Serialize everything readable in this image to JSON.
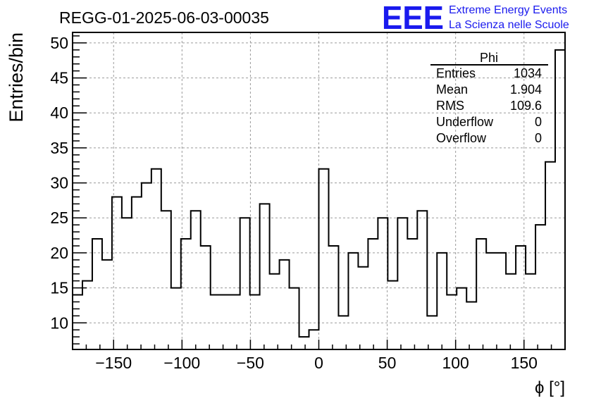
{
  "chart_data": {
    "type": "histogram",
    "title": "REGG-01-2025-06-03-00035",
    "xlabel": "ϕ [°]",
    "ylabel": "Entries/bin",
    "xlim": [
      -180,
      180
    ],
    "ylim": [
      6.2,
      51.5
    ],
    "bin_width": 7.2,
    "bin_edges_start": -180,
    "values": [
      14,
      16,
      22,
      19,
      28,
      25,
      28,
      30,
      32,
      26,
      15,
      22,
      26,
      21,
      14,
      14,
      14,
      25,
      14,
      27,
      17,
      19,
      15,
      8,
      9,
      32,
      21,
      11,
      20,
      18,
      22,
      25,
      16,
      25,
      22,
      26,
      11,
      20,
      14,
      15,
      13,
      22,
      20,
      20,
      17,
      21,
      17,
      24,
      33,
      49
    ],
    "x_ticks": [
      -150,
      -100,
      -50,
      0,
      50,
      100,
      150
    ],
    "x_tick_labels": [
      "−150",
      "−100",
      "−50",
      "0",
      "50",
      "100",
      "150"
    ],
    "y_ticks": [
      10,
      15,
      20,
      25,
      30,
      35,
      40,
      45,
      50
    ],
    "y_tick_labels": [
      "10",
      "15",
      "20",
      "25",
      "30",
      "35",
      "40",
      "45",
      "50"
    ],
    "grid": true,
    "stats_box": {
      "title": "Phi",
      "rows": [
        {
          "label": "Entries",
          "value": "1034"
        },
        {
          "label": "Mean",
          "value": "1.904"
        },
        {
          "label": "RMS",
          "value": "109.6"
        },
        {
          "label": "Underflow",
          "value": "0"
        },
        {
          "label": "Overflow",
          "value": "0"
        }
      ]
    }
  },
  "logo": {
    "text": "EEE",
    "line1": "Extreme Energy Events",
    "line2": "La Scienza nelle Scuole",
    "color": "#1a1aee"
  }
}
